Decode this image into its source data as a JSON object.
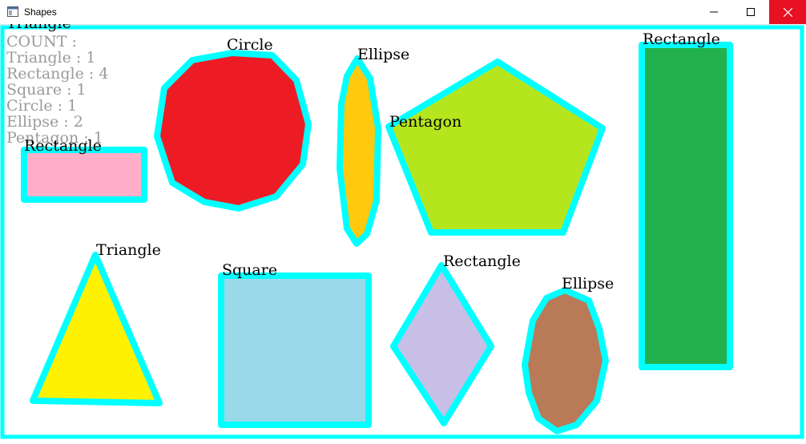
{
  "window": {
    "title": "Shapes",
    "icons": {
      "app": "app-window-icon",
      "minimize": "minimize-icon",
      "maximize": "maximize-icon",
      "close": "close-icon"
    }
  },
  "colors": {
    "outline": "#00ffff",
    "close_button": "#e81123",
    "count_text": "#9a9a9a",
    "label_text": "#000000"
  },
  "overlay": {
    "clipped_heading": "Triangle",
    "count_lines": [
      "COUNT :",
      "Triangle : 1",
      "Rectangle : 4",
      "Square : 1",
      "Circle : 1",
      "Ellipse : 2",
      "Pentagon : 1"
    ]
  },
  "shapes": [
    {
      "label": "Rectangle",
      "fill": "#ffaec9"
    },
    {
      "label": "Circle",
      "fill": "#ed1c24"
    },
    {
      "label": "Ellipse",
      "fill": "#ffc90e"
    },
    {
      "label": "Pentagon",
      "fill": "#b5e61d"
    },
    {
      "label": "Rectangle",
      "fill": "#22b14c"
    },
    {
      "label": "Triangle",
      "fill": "#fff200"
    },
    {
      "label": "Square",
      "fill": "#99d9ea"
    },
    {
      "label": "Rectangle",
      "fill": "#c8bfe7"
    },
    {
      "label": "Ellipse",
      "fill": "#b97a57"
    }
  ]
}
